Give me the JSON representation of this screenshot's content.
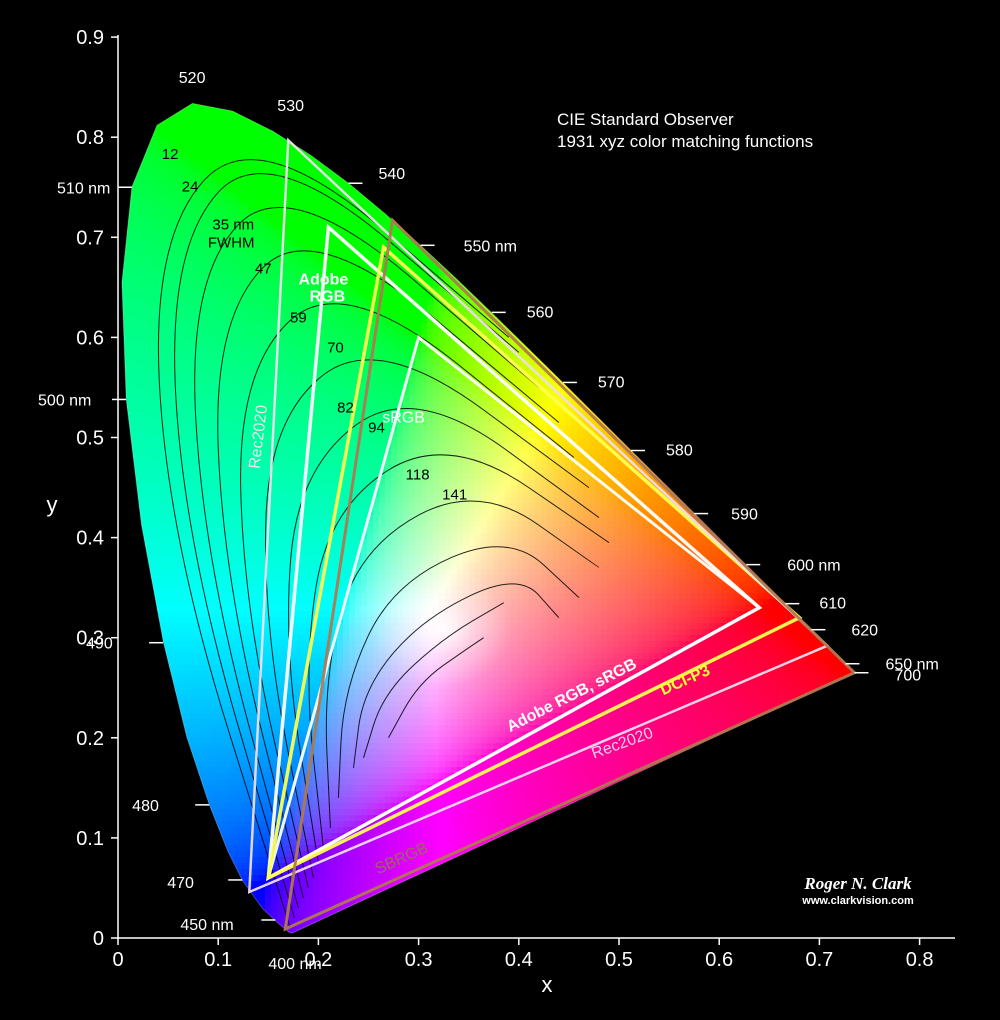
{
  "chart_data": {
    "type": "scatter",
    "title": [
      "CIE Standard Observer",
      "1931 xyz color matching functions"
    ],
    "xlabel": "x",
    "ylabel": "y",
    "xlim": [
      0,
      0.85
    ],
    "ylim": [
      0,
      0.9
    ],
    "x_ticks": [
      "0",
      "0.1",
      "0.2",
      "0.3",
      "0.4",
      "0.5",
      "0.6",
      "0.7",
      "0.8"
    ],
    "y_ticks": [
      "0",
      "0.1",
      "0.2",
      "0.3",
      "0.4",
      "0.5",
      "0.6",
      "0.7",
      "0.8",
      "0.9"
    ],
    "spectral_locus": [
      {
        "wl": 380,
        "x": 0.1741,
        "y": 0.005
      },
      {
        "wl": 420,
        "x": 0.1714,
        "y": 0.0051
      },
      {
        "wl": 440,
        "x": 0.1644,
        "y": 0.0109
      },
      {
        "wl": 450,
        "x": 0.1566,
        "y": 0.0177
      },
      {
        "wl": 460,
        "x": 0.144,
        "y": 0.0297
      },
      {
        "wl": 470,
        "x": 0.1241,
        "y": 0.0578
      },
      {
        "wl": 475,
        "x": 0.1096,
        "y": 0.0868
      },
      {
        "wl": 480,
        "x": 0.0913,
        "y": 0.1327
      },
      {
        "wl": 485,
        "x": 0.0687,
        "y": 0.2007
      },
      {
        "wl": 490,
        "x": 0.0454,
        "y": 0.295
      },
      {
        "wl": 495,
        "x": 0.0235,
        "y": 0.4127
      },
      {
        "wl": 500,
        "x": 0.0082,
        "y": 0.5384
      },
      {
        "wl": 505,
        "x": 0.0039,
        "y": 0.6548
      },
      {
        "wl": 510,
        "x": 0.0139,
        "y": 0.7502
      },
      {
        "wl": 515,
        "x": 0.0389,
        "y": 0.812
      },
      {
        "wl": 520,
        "x": 0.0743,
        "y": 0.8338
      },
      {
        "wl": 525,
        "x": 0.1142,
        "y": 0.8262
      },
      {
        "wl": 530,
        "x": 0.1547,
        "y": 0.8059
      },
      {
        "wl": 535,
        "x": 0.1929,
        "y": 0.7816
      },
      {
        "wl": 540,
        "x": 0.2296,
        "y": 0.7543
      },
      {
        "wl": 545,
        "x": 0.2658,
        "y": 0.7243
      },
      {
        "wl": 550,
        "x": 0.3016,
        "y": 0.6923
      },
      {
        "wl": 555,
        "x": 0.3373,
        "y": 0.6589
      },
      {
        "wl": 560,
        "x": 0.3731,
        "y": 0.6245
      },
      {
        "wl": 565,
        "x": 0.4087,
        "y": 0.5896
      },
      {
        "wl": 570,
        "x": 0.4441,
        "y": 0.5547
      },
      {
        "wl": 575,
        "x": 0.4788,
        "y": 0.5202
      },
      {
        "wl": 580,
        "x": 0.5125,
        "y": 0.4866
      },
      {
        "wl": 585,
        "x": 0.5448,
        "y": 0.4544
      },
      {
        "wl": 590,
        "x": 0.5752,
        "y": 0.4242
      },
      {
        "wl": 595,
        "x": 0.6029,
        "y": 0.3965
      },
      {
        "wl": 600,
        "x": 0.627,
        "y": 0.3725
      },
      {
        "wl": 605,
        "x": 0.6482,
        "y": 0.3514
      },
      {
        "wl": 610,
        "x": 0.6658,
        "y": 0.334
      },
      {
        "wl": 620,
        "x": 0.6915,
        "y": 0.3083
      },
      {
        "wl": 630,
        "x": 0.7079,
        "y": 0.292
      },
      {
        "wl": 640,
        "x": 0.719,
        "y": 0.2809
      },
      {
        "wl": 650,
        "x": 0.726,
        "y": 0.274
      },
      {
        "wl": 680,
        "x": 0.7334,
        "y": 0.2666
      },
      {
        "wl": 700,
        "x": 0.7347,
        "y": 0.2653
      }
    ],
    "wavelength_labels": [
      {
        "text": "400 nm",
        "x": 0.175,
        "y": 0.005
      },
      {
        "text": "450 nm",
        "x": 0.157,
        "y": 0.018
      },
      {
        "text": "470",
        "x": 0.124,
        "y": 0.058
      },
      {
        "text": "480",
        "x": 0.091,
        "y": 0.133
      },
      {
        "text": "490",
        "x": 0.045,
        "y": 0.295
      },
      {
        "text": "500 nm",
        "x": 0.008,
        "y": 0.538
      },
      {
        "text": "510 nm",
        "x": 0.014,
        "y": 0.75
      },
      {
        "text": "520",
        "x": 0.074,
        "y": 0.834
      },
      {
        "text": "530",
        "x": 0.155,
        "y": 0.806
      },
      {
        "text": "540",
        "x": 0.23,
        "y": 0.754
      },
      {
        "text": "550 nm",
        "x": 0.302,
        "y": 0.692
      },
      {
        "text": "560",
        "x": 0.373,
        "y": 0.625
      },
      {
        "text": "570",
        "x": 0.444,
        "y": 0.555
      },
      {
        "text": "580",
        "x": 0.512,
        "y": 0.487
      },
      {
        "text": "590",
        "x": 0.575,
        "y": 0.424
      },
      {
        "text": "600 nm",
        "x": 0.627,
        "y": 0.373
      },
      {
        "text": "610",
        "x": 0.666,
        "y": 0.334
      },
      {
        "text": "620",
        "x": 0.692,
        "y": 0.308
      },
      {
        "text": "650 nm",
        "x": 0.726,
        "y": 0.274
      },
      {
        "text": "700",
        "x": 0.735,
        "y": 0.265
      }
    ],
    "fwhm_labels": [
      {
        "text": "12",
        "x": 0.052,
        "y": 0.778
      },
      {
        "text": "24",
        "x": 0.072,
        "y": 0.746
      },
      {
        "text": "35 nm",
        "x": 0.115,
        "y": 0.708
      },
      {
        "text": "FWHM",
        "x": 0.113,
        "y": 0.69
      },
      {
        "text": "47",
        "x": 0.145,
        "y": 0.664
      },
      {
        "text": "59",
        "x": 0.18,
        "y": 0.615
      },
      {
        "text": "70",
        "x": 0.217,
        "y": 0.585
      },
      {
        "text": "82",
        "x": 0.227,
        "y": 0.525
      },
      {
        "text": "94",
        "x": 0.258,
        "y": 0.505
      },
      {
        "text": "118",
        "x": 0.299,
        "y": 0.458
      },
      {
        "text": "141",
        "x": 0.336,
        "y": 0.438
      }
    ],
    "fwhm_curves": [
      [
        [
          0.172,
          0.01
        ],
        [
          0.05,
          0.4
        ],
        [
          0.033,
          0.7
        ],
        [
          0.14,
          0.815
        ],
        [
          0.39,
          0.6
        ]
      ],
      [
        [
          0.176,
          0.02
        ],
        [
          0.065,
          0.4
        ],
        [
          0.05,
          0.69
        ],
        [
          0.15,
          0.8
        ],
        [
          0.4,
          0.585
        ]
      ],
      [
        [
          0.18,
          0.03
        ],
        [
          0.085,
          0.38
        ],
        [
          0.07,
          0.66
        ],
        [
          0.17,
          0.765
        ],
        [
          0.42,
          0.55
        ]
      ],
      [
        [
          0.185,
          0.04
        ],
        [
          0.105,
          0.36
        ],
        [
          0.095,
          0.62
        ],
        [
          0.195,
          0.72
        ],
        [
          0.44,
          0.515
        ]
      ],
      [
        [
          0.19,
          0.05
        ],
        [
          0.125,
          0.33
        ],
        [
          0.12,
          0.57
        ],
        [
          0.225,
          0.665
        ],
        [
          0.455,
          0.48
        ]
      ],
      [
        [
          0.195,
          0.06
        ],
        [
          0.145,
          0.31
        ],
        [
          0.15,
          0.52
        ],
        [
          0.26,
          0.605
        ],
        [
          0.47,
          0.45
        ]
      ],
      [
        [
          0.2,
          0.075
        ],
        [
          0.165,
          0.29
        ],
        [
          0.18,
          0.47
        ],
        [
          0.295,
          0.555
        ],
        [
          0.48,
          0.42
        ]
      ],
      [
        [
          0.205,
          0.09
        ],
        [
          0.185,
          0.27
        ],
        [
          0.21,
          0.43
        ],
        [
          0.33,
          0.505
        ],
        [
          0.49,
          0.395
        ]
      ],
      [
        [
          0.212,
          0.11
        ],
        [
          0.205,
          0.26
        ],
        [
          0.24,
          0.39
        ],
        [
          0.36,
          0.455
        ],
        [
          0.48,
          0.37
        ]
      ],
      [
        [
          0.22,
          0.14
        ],
        [
          0.225,
          0.25
        ],
        [
          0.275,
          0.355
        ],
        [
          0.39,
          0.405
        ],
        [
          0.46,
          0.34
        ]
      ],
      [
        [
          0.235,
          0.17
        ],
        [
          0.245,
          0.25
        ],
        [
          0.305,
          0.32
        ],
        [
          0.4,
          0.365
        ],
        [
          0.44,
          0.32
        ]
      ],
      [
        [
          0.245,
          0.18
        ],
        [
          0.265,
          0.245
        ],
        [
          0.325,
          0.3
        ],
        [
          0.385,
          0.335
        ]
      ],
      [
        [
          0.27,
          0.2
        ],
        [
          0.3,
          0.255
        ],
        [
          0.35,
          0.29
        ],
        [
          0.365,
          0.3
        ]
      ]
    ],
    "gamuts": [
      {
        "name": "Adobe RGB",
        "label": "Adobe RGB, sRGB",
        "color": "#ffffff",
        "points": [
          [
            0.64,
            0.33
          ],
          [
            0.21,
            0.71
          ],
          [
            0.15,
            0.06
          ]
        ]
      },
      {
        "name": "sRGB",
        "label": "sRGB",
        "color": "#ffffff",
        "points": [
          [
            0.64,
            0.33
          ],
          [
            0.3,
            0.6
          ],
          [
            0.15,
            0.06
          ]
        ]
      },
      {
        "name": "DCI-P3",
        "label": "DCI-P3",
        "color": "#ffff50",
        "points": [
          [
            0.68,
            0.32
          ],
          [
            0.265,
            0.69
          ],
          [
            0.15,
            0.06
          ]
        ]
      },
      {
        "name": "Rec2020",
        "label": "Rec2020",
        "color": "#eeddee",
        "points": [
          [
            0.708,
            0.292
          ],
          [
            0.17,
            0.797
          ],
          [
            0.131,
            0.046
          ]
        ]
      },
      {
        "name": "SBRGB",
        "label": "SBRGB",
        "color": "#b07850",
        "points": [
          [
            0.735,
            0.265
          ],
          [
            0.274,
            0.717
          ],
          [
            0.167,
            0.009
          ]
        ]
      }
    ],
    "annotations": [
      {
        "text": "Adobe",
        "x": 0.205,
        "y": 0.653
      },
      {
        "text": "RGB",
        "x": 0.209,
        "y": 0.636
      },
      {
        "text": "sRGB",
        "x": 0.285,
        "y": 0.515
      },
      {
        "text": "Rec2020",
        "x": 0.145,
        "y": 0.5
      },
      {
        "text": "Adobe RGB, sRGB",
        "x": 0.455,
        "y": 0.238
      },
      {
        "text": "DCI-P3",
        "x": 0.568,
        "y": 0.253
      },
      {
        "text": "Rec2020",
        "x": 0.505,
        "y": 0.19
      },
      {
        "text": "SBRGB",
        "x": 0.285,
        "y": 0.075
      }
    ],
    "signature": {
      "name": "Roger N. Clark",
      "url": "www.clarkvision.com"
    }
  }
}
